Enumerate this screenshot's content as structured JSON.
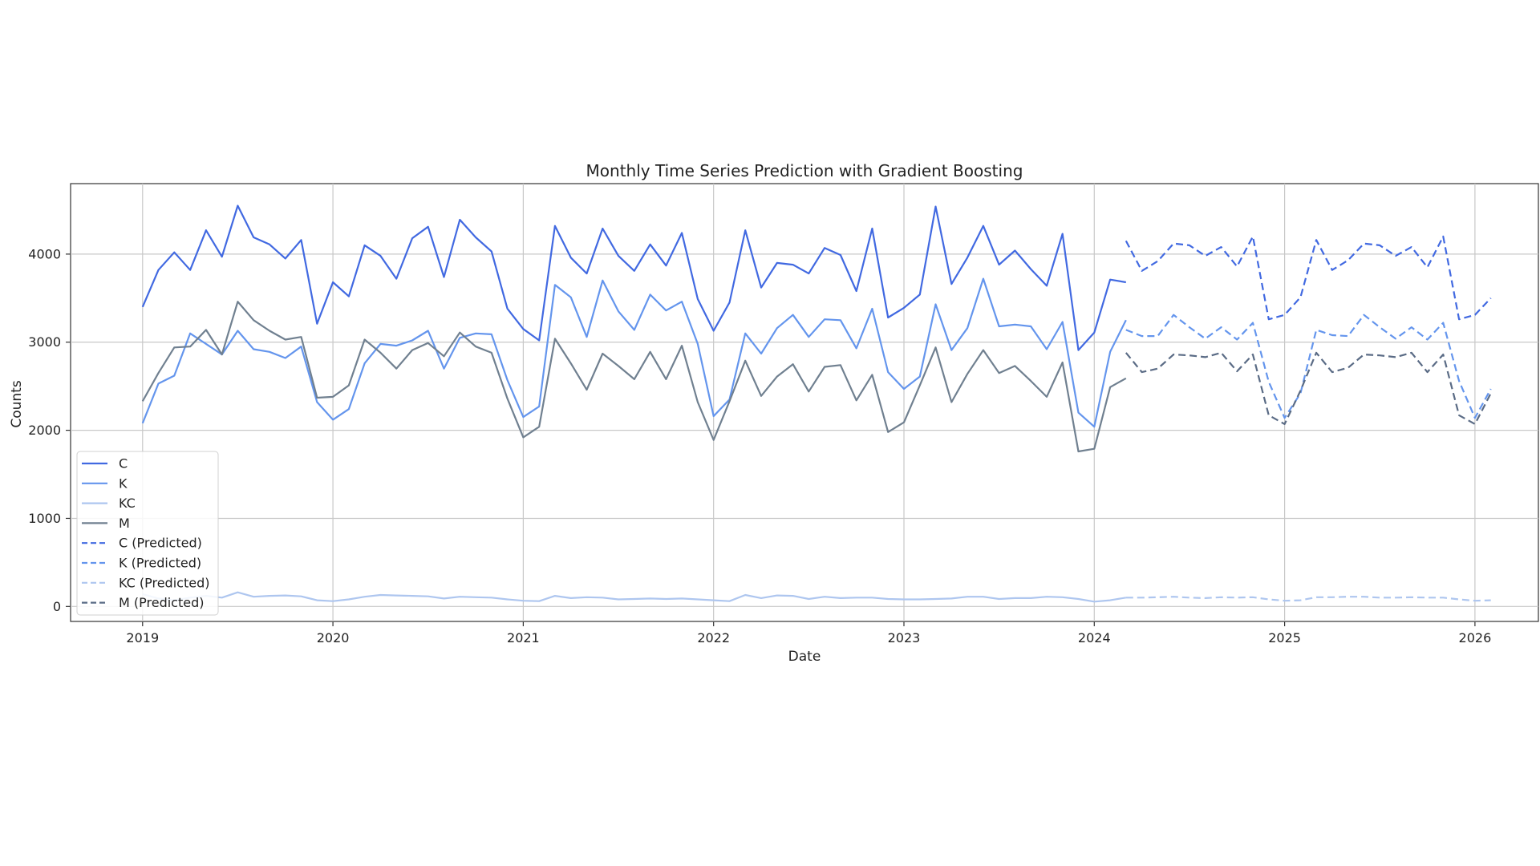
{
  "chart_data": {
    "type": "line",
    "title": "Monthly Time Series Prediction with Gradient Boosting",
    "xlabel": "Date",
    "ylabel": "Counts",
    "xlim": [
      "2018-08-15",
      "2026-05-01"
    ],
    "ylim": [
      -170,
      4800
    ],
    "x_ticks": [
      "2019",
      "2020",
      "2021",
      "2022",
      "2023",
      "2024",
      "2025",
      "2026"
    ],
    "y_ticks": [
      0,
      1000,
      2000,
      3000,
      4000
    ],
    "grid": true,
    "legend_position": "lower-left",
    "x_start": "2019-01",
    "forecast_start": "2024-03",
    "colors": {
      "C": "#4169e1",
      "K": "#6495ed",
      "KC": "#aec6ef",
      "M": "#708090",
      "M_pred": "#5a6b85"
    },
    "series": [
      {
        "name": "C",
        "style": "solid",
        "color": "#4169e1",
        "values": [
          3400,
          3820,
          4020,
          3820,
          4270,
          3970,
          4550,
          4190,
          4110,
          3950,
          4160,
          3210,
          3680,
          3520,
          4100,
          3980,
          3720,
          4180,
          4310,
          3740,
          4390,
          4190,
          4030,
          3380,
          3150,
          3020,
          4320,
          3960,
          3780,
          4290,
          3980,
          3810,
          4110,
          3870,
          4240,
          3490,
          3130,
          3450,
          4270,
          3620,
          3900,
          3880,
          3780,
          4070,
          3990,
          3580,
          4290,
          3280,
          3390,
          3540,
          4540,
          3660,
          3960,
          4320,
          3880,
          4040,
          3830,
          3640,
          4230,
          2910,
          3110,
          3710,
          3680
        ]
      },
      {
        "name": "K",
        "style": "solid",
        "color": "#6495ed",
        "values": [
          2080,
          2530,
          2620,
          3100,
          2980,
          2860,
          3130,
          2920,
          2890,
          2820,
          2950,
          2320,
          2120,
          2240,
          2760,
          2980,
          2960,
          3020,
          3130,
          2700,
          3050,
          3100,
          3090,
          2570,
          2150,
          2270,
          3650,
          3510,
          3060,
          3700,
          3350,
          3140,
          3540,
          3360,
          3460,
          2980,
          2160,
          2350,
          3100,
          2870,
          3160,
          3310,
          3060,
          3260,
          3250,
          2930,
          3380,
          2660,
          2470,
          2610,
          3430,
          2910,
          3160,
          3720,
          3180,
          3200,
          3180,
          2920,
          3230,
          2200,
          2040,
          2890,
          3250
        ]
      },
      {
        "name": "KC",
        "style": "solid",
        "color": "#aec6ef",
        "values": [
          140,
          90,
          70,
          100,
          120,
          100,
          160,
          110,
          120,
          125,
          115,
          70,
          60,
          80,
          110,
          130,
          125,
          120,
          115,
          90,
          110,
          105,
          100,
          80,
          65,
          60,
          120,
          95,
          105,
          100,
          80,
          85,
          90,
          85,
          90,
          80,
          70,
          60,
          130,
          95,
          125,
          120,
          85,
          110,
          95,
          100,
          100,
          85,
          80,
          80,
          85,
          90,
          110,
          110,
          85,
          95,
          95,
          110,
          105,
          85,
          55,
          70,
          100
        ]
      },
      {
        "name": "M",
        "style": "solid",
        "color": "#708090",
        "values": [
          2330,
          2650,
          2940,
          2950,
          3140,
          2860,
          3460,
          3250,
          3130,
          3030,
          3060,
          2370,
          2380,
          2510,
          3030,
          2880,
          2700,
          2910,
          2990,
          2840,
          3110,
          2950,
          2880,
          2360,
          1920,
          2040,
          3040,
          2760,
          2460,
          2870,
          2730,
          2580,
          2890,
          2580,
          2960,
          2320,
          1890,
          2330,
          2790,
          2390,
          2610,
          2750,
          2440,
          2720,
          2740,
          2340,
          2630,
          1980,
          2090,
          2510,
          2940,
          2320,
          2640,
          2910,
          2650,
          2730,
          2560,
          2380,
          2770,
          1760,
          1790,
          2490,
          2590
        ]
      },
      {
        "name": "C (Predicted)",
        "style": "dashed",
        "color": "#4169e1",
        "values": [
          4150,
          3810,
          3920,
          4120,
          4100,
          3980,
          4080,
          3860,
          4200,
          3260,
          3310,
          3510,
          4160,
          3820,
          3930,
          4120,
          4100,
          3980,
          4080,
          3850,
          4200,
          3260,
          3310,
          3500
        ]
      },
      {
        "name": "K (Predicted)",
        "style": "dashed",
        "color": "#6495ed",
        "values": [
          3140,
          3070,
          3070,
          3310,
          3170,
          3040,
          3170,
          3030,
          3220,
          2550,
          2140,
          2420,
          3140,
          3080,
          3070,
          3310,
          3170,
          3040,
          3170,
          3030,
          3220,
          2560,
          2140,
          2470
        ]
      },
      {
        "name": "KC (Predicted)",
        "style": "dashed",
        "color": "#aec6ef",
        "values": [
          100,
          100,
          105,
          110,
          100,
          95,
          105,
          100,
          105,
          80,
          65,
          70,
          105,
          105,
          110,
          110,
          100,
          100,
          105,
          100,
          100,
          80,
          65,
          70
        ]
      },
      {
        "name": "M (Predicted)",
        "style": "dashed",
        "color": "#5a6b85",
        "values": [
          2880,
          2660,
          2700,
          2860,
          2850,
          2830,
          2880,
          2670,
          2860,
          2170,
          2070,
          2450,
          2880,
          2660,
          2710,
          2860,
          2850,
          2830,
          2880,
          2660,
          2860,
          2170,
          2070,
          2420
        ]
      }
    ]
  }
}
